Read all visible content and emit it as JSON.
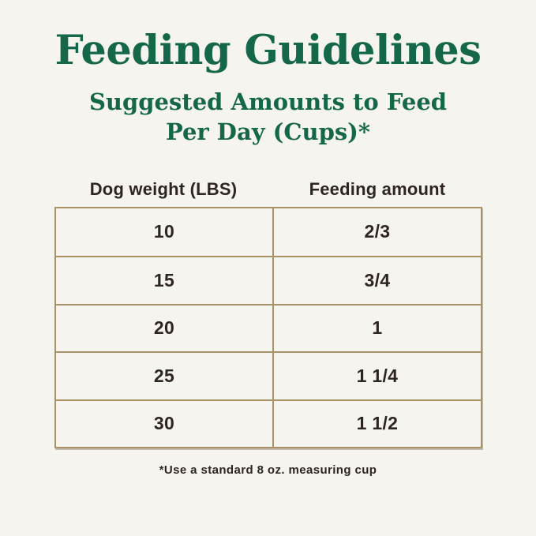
{
  "page": {
    "title": "Feeding Guidelines",
    "subtitle_line1": "Suggested Amounts to Feed",
    "subtitle_line2": "Per Day (Cups)*",
    "footnote": "*Use a standard 8 oz. measuring cup"
  },
  "table": {
    "columns": [
      "Dog weight (LBS)",
      "Feeding amount"
    ],
    "rows": [
      {
        "weight": "10",
        "amount": "2/3"
      },
      {
        "weight": "15",
        "amount": "3/4"
      },
      {
        "weight": "20",
        "amount": "1"
      },
      {
        "weight": "25",
        "amount": "1 1/4"
      },
      {
        "weight": "30",
        "amount": "1 1/2"
      }
    ]
  },
  "colors": {
    "background": "#f5f4ee",
    "heading_green": "#156749",
    "table_border": "#ab9166",
    "text_dark": "#2e2523"
  },
  "chart_data": {
    "type": "table",
    "title": "Feeding Guidelines",
    "subtitle": "Suggested Amounts to Feed Per Day (Cups)*",
    "columns": [
      "Dog weight (LBS)",
      "Feeding amount"
    ],
    "rows": [
      [
        "10",
        "2/3"
      ],
      [
        "15",
        "3/4"
      ],
      [
        "20",
        "1"
      ],
      [
        "25",
        "1 1/4"
      ],
      [
        "30",
        "1 1/2"
      ]
    ],
    "footnote": "*Use a standard 8 oz. measuring cup",
    "layout": {
      "grid": true,
      "header_outside_border": true
    }
  }
}
